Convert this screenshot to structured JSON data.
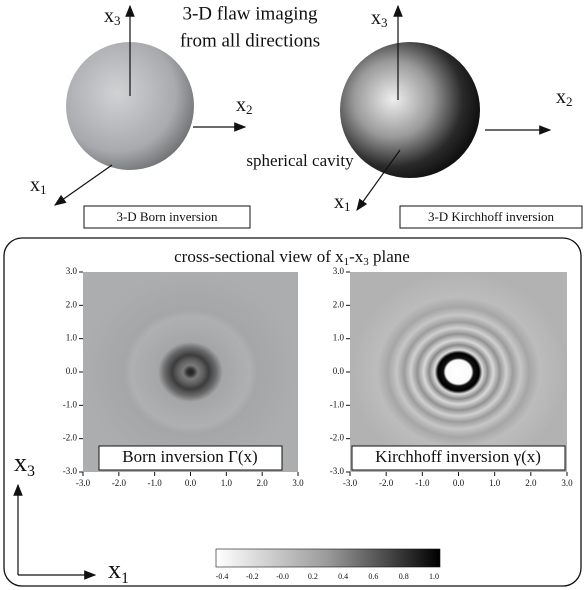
{
  "header": {
    "line1": "3-D flaw imaging",
    "line2": "from all directions",
    "cavity": "spherical cavity"
  },
  "left_sphere": {
    "x3": {
      "base": "x",
      "sub": "3"
    },
    "x2": {
      "base": "x",
      "sub": "2"
    },
    "x1": {
      "base": "x",
      "sub": "1"
    },
    "label": "3-D Born inversion"
  },
  "right_sphere": {
    "x3": {
      "base": "x",
      "sub": "3"
    },
    "x2": {
      "base": "x",
      "sub": "2"
    },
    "x1": {
      "base": "x",
      "sub": "1"
    },
    "label": "3-D Kirchhoff inversion"
  },
  "panel": {
    "title": {
      "a": "cross-sectional view of x",
      "s1": "1",
      "b": "-x",
      "s2": "3",
      "c": " plane"
    },
    "yticks": [
      "3.0",
      "2.0",
      "1.0",
      "0.0",
      "-1.0",
      "-2.0",
      "-3.0"
    ],
    "xticks": [
      "-3.0",
      "-2.0",
      "-1.0",
      "0.0",
      "1.0",
      "2.0",
      "3.0"
    ],
    "left_label": "Born inversion Γ(x)",
    "right_label": "Kirchhoff inversion γ(x)",
    "axis_x3": {
      "base": "x",
      "sub": "3"
    },
    "axis_x1": {
      "base": "x",
      "sub": "1"
    },
    "colorbar_ticks": [
      "-0.4",
      "-0.2",
      "-0.0",
      "0.2",
      "0.4",
      "0.6",
      "0.8",
      "1.0"
    ]
  }
}
